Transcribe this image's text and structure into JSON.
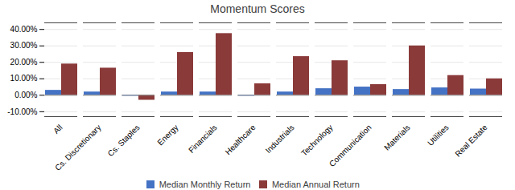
{
  "chart_data": {
    "type": "bar",
    "title": "Momentum Scores",
    "categories": [
      "All",
      "Cs. Discretionary",
      "Cs. Staples",
      "Energy",
      "Financials",
      "Healthcare",
      "Industrials",
      "Technology",
      "Communication",
      "Materials",
      "Utilities",
      "Real Estate"
    ],
    "series": [
      {
        "name": "Median Monthly Return",
        "color": "#4472C4",
        "values": [
          0.03,
          0.02,
          -0.005,
          0.02,
          0.02,
          -0.005,
          0.02,
          0.04,
          0.05,
          0.035,
          0.045,
          0.038
        ]
      },
      {
        "name": "Median Annual Return",
        "color": "#8B3A3A",
        "values": [
          0.19,
          0.165,
          -0.03,
          0.26,
          0.375,
          0.07,
          0.235,
          0.21,
          0.065,
          0.3,
          0.12,
          0.1
        ]
      }
    ],
    "ylim": [
      -0.13,
      0.44
    ],
    "yticks": [
      {
        "value": -0.1,
        "label": "-10.00%"
      },
      {
        "value": 0.0,
        "label": "0.00%"
      },
      {
        "value": 0.1,
        "label": "10.00%"
      },
      {
        "value": 0.2,
        "label": "20.00%"
      },
      {
        "value": 0.3,
        "label": "30.00%"
      },
      {
        "value": 0.4,
        "label": "40.00%"
      }
    ],
    "grid": true,
    "legend": "bottom"
  }
}
